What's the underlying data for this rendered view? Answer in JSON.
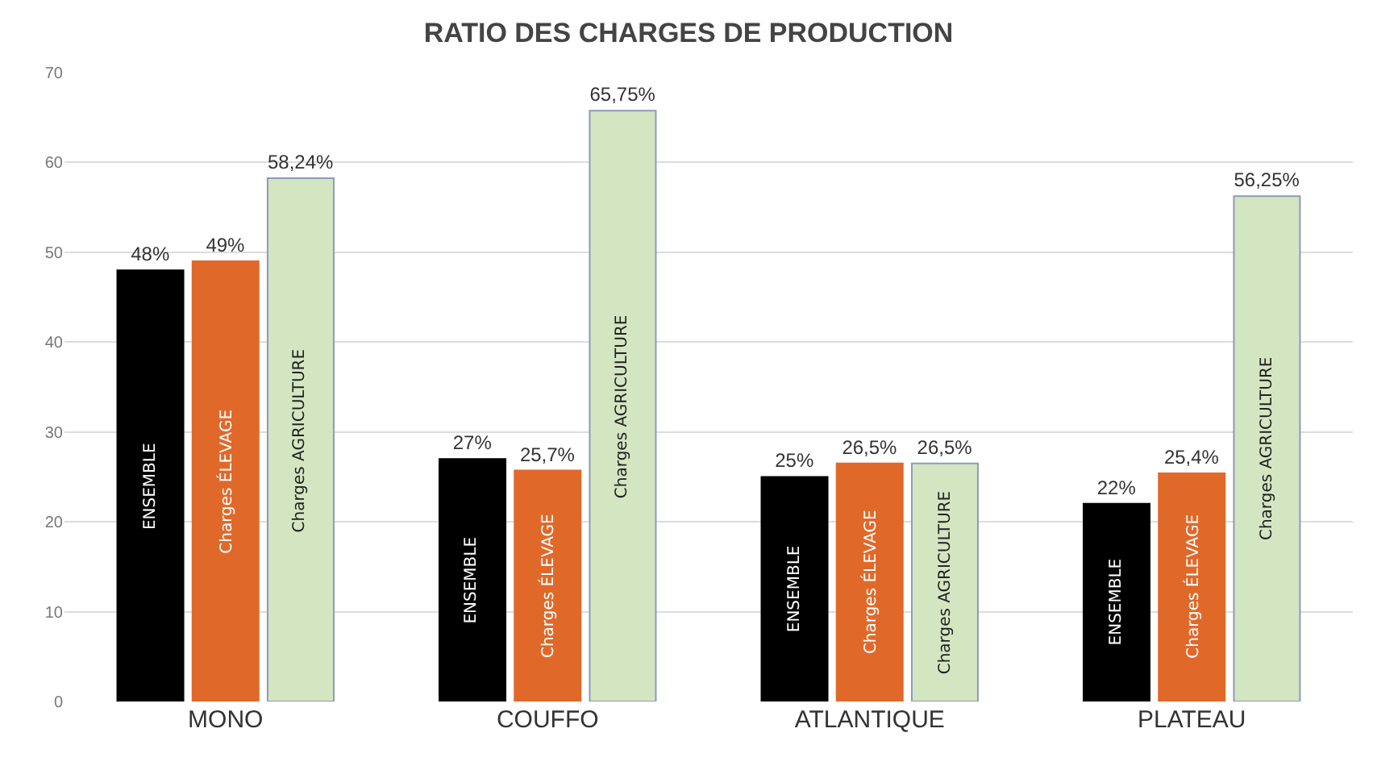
{
  "chart_data": {
    "type": "bar",
    "title": "RATIO DES CHARGES DE PRODUCTION",
    "categories": [
      "MONO",
      "COUFFO",
      "ATLANTIQUE",
      "PLATEAU"
    ],
    "series": [
      {
        "name": "ENSEMBLE",
        "color": "#000000",
        "values": [
          48,
          27,
          25,
          22
        ],
        "value_labels": [
          "48%",
          "27%",
          "25%",
          "22%"
        ]
      },
      {
        "name": "Charges ÉLEVAGE",
        "color": "#e0692a",
        "values": [
          49,
          25.7,
          26.5,
          25.4
        ],
        "value_labels": [
          "49%",
          "25,7%",
          "26,5%",
          "25,4%"
        ]
      },
      {
        "name": "Charges AGRICULTURE",
        "color": "#d3e6c1",
        "values": [
          58.24,
          65.75,
          26.5,
          56.25
        ],
        "value_labels": [
          "58,24%",
          "65,75%",
          "26,5%",
          "56,25%"
        ]
      }
    ],
    "ylim": [
      0,
      70
    ],
    "yticks": [
      0,
      10,
      20,
      30,
      40,
      50,
      60,
      70
    ],
    "grid": "y",
    "legend": false
  }
}
